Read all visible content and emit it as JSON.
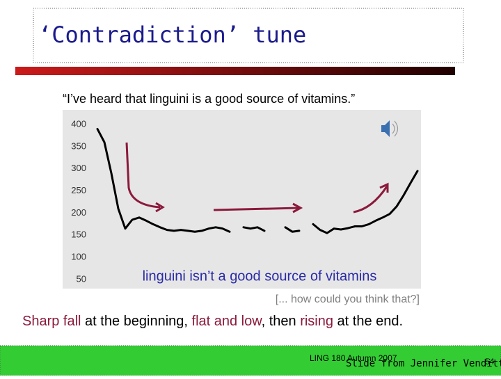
{
  "title": "‘Contradiction’ tune",
  "quote": "“I’ve heard that linguini is a good source of vitamins.”",
  "figure": {
    "type": "line",
    "caption": "linguini isn’t a good source of vitamins",
    "ylim": [
      50,
      400
    ],
    "yticks": [
      400,
      350,
      300,
      250,
      200,
      150,
      100,
      50
    ],
    "color": "#000000",
    "values": [
      390,
      360,
      290,
      210,
      165,
      185,
      190,
      183,
      175,
      168,
      162,
      160,
      162,
      160,
      158,
      160,
      165,
      168,
      165,
      158,
      null,
      168,
      165,
      168,
      160,
      null,
      null,
      168,
      158,
      160,
      null,
      175,
      162,
      155,
      165,
      163,
      166,
      170,
      170,
      175,
      183,
      190,
      198,
      215,
      240,
      268,
      295
    ]
  },
  "aside": "[... how could you think that?]",
  "summary": [
    {
      "text": "Sharp fall",
      "emphasis": true
    },
    {
      "text": " at the beginning, ",
      "emphasis": false
    },
    {
      "text": "flat and low",
      "emphasis": true
    },
    {
      "text": ", then ",
      "emphasis": false
    },
    {
      "text": "rising",
      "emphasis": true
    },
    {
      "text": " at the end.",
      "emphasis": false
    }
  ],
  "footer": {
    "course": "LING 180 Autumn 2007",
    "credit": "Slide from Jennifer Venditti",
    "page": "54"
  }
}
